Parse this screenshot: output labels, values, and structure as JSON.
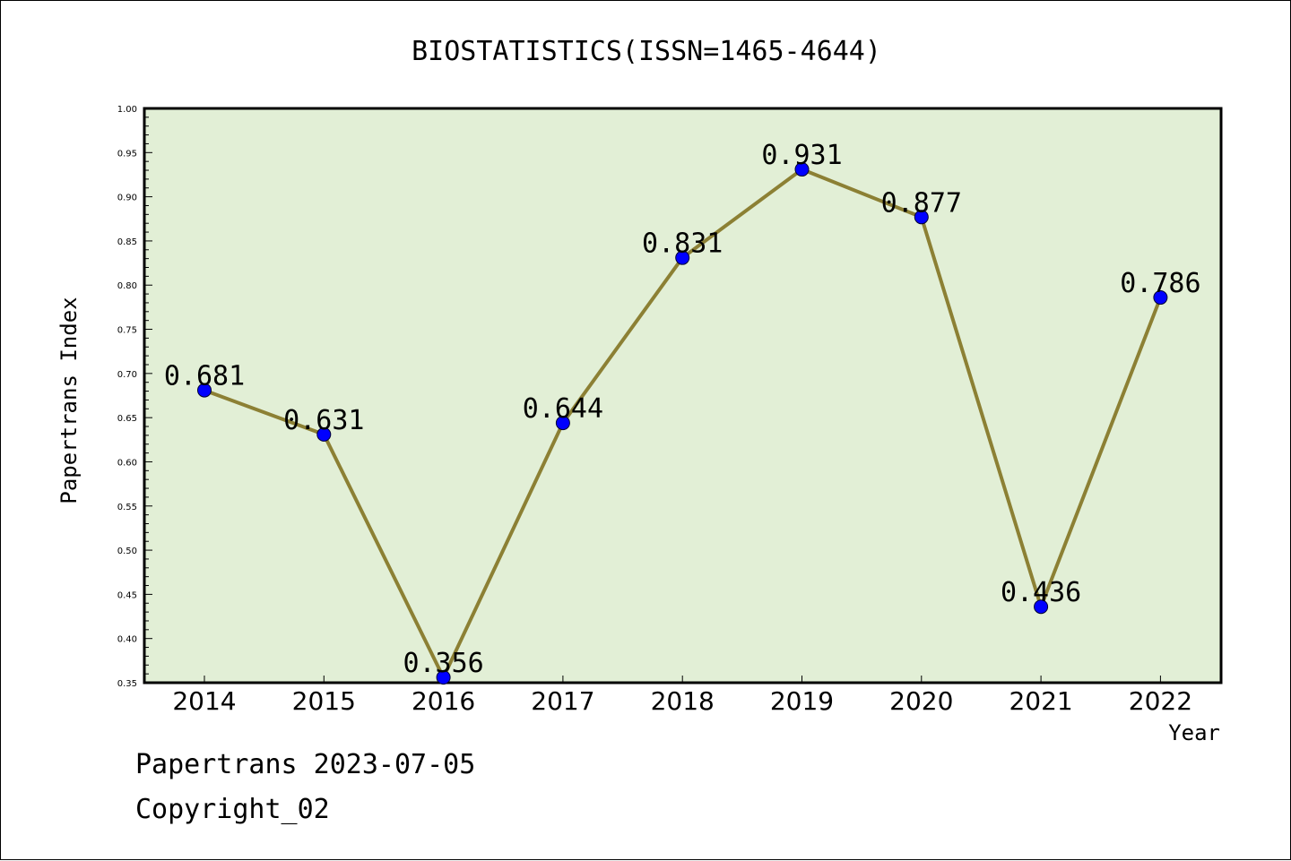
{
  "chart_data": {
    "type": "line",
    "title": "BIOSTATISTICS(ISSN=1465-4644)",
    "xlabel": "Year",
    "ylabel": "Papertrans Index",
    "categories": [
      "2014",
      "2015",
      "2016",
      "2017",
      "2018",
      "2019",
      "2020",
      "2021",
      "2022"
    ],
    "series": [
      {
        "values": [
          0.681,
          0.631,
          0.356,
          0.644,
          0.831,
          0.931,
          0.877,
          0.436,
          0.786
        ],
        "labels": [
          "0.681",
          "0.631",
          "0.356",
          "0.644",
          "0.831",
          "0.931",
          "0.877",
          "0.436",
          "0.786"
        ]
      }
    ],
    "ylim": [
      0.35,
      1.0
    ],
    "yticks": [
      "0.35",
      "0.40",
      "0.45",
      "0.50",
      "0.55",
      "0.60",
      "0.65",
      "0.70",
      "0.75",
      "0.80",
      "0.85",
      "0.90",
      "0.95",
      "1.00"
    ],
    "grid": false,
    "colors": {
      "plot_background": "#e2efd6",
      "line": "#8c8034",
      "marker": "#0000ff"
    }
  },
  "footer": {
    "line1": "Papertrans 2023-07-05",
    "line2": "Copyright_02"
  }
}
